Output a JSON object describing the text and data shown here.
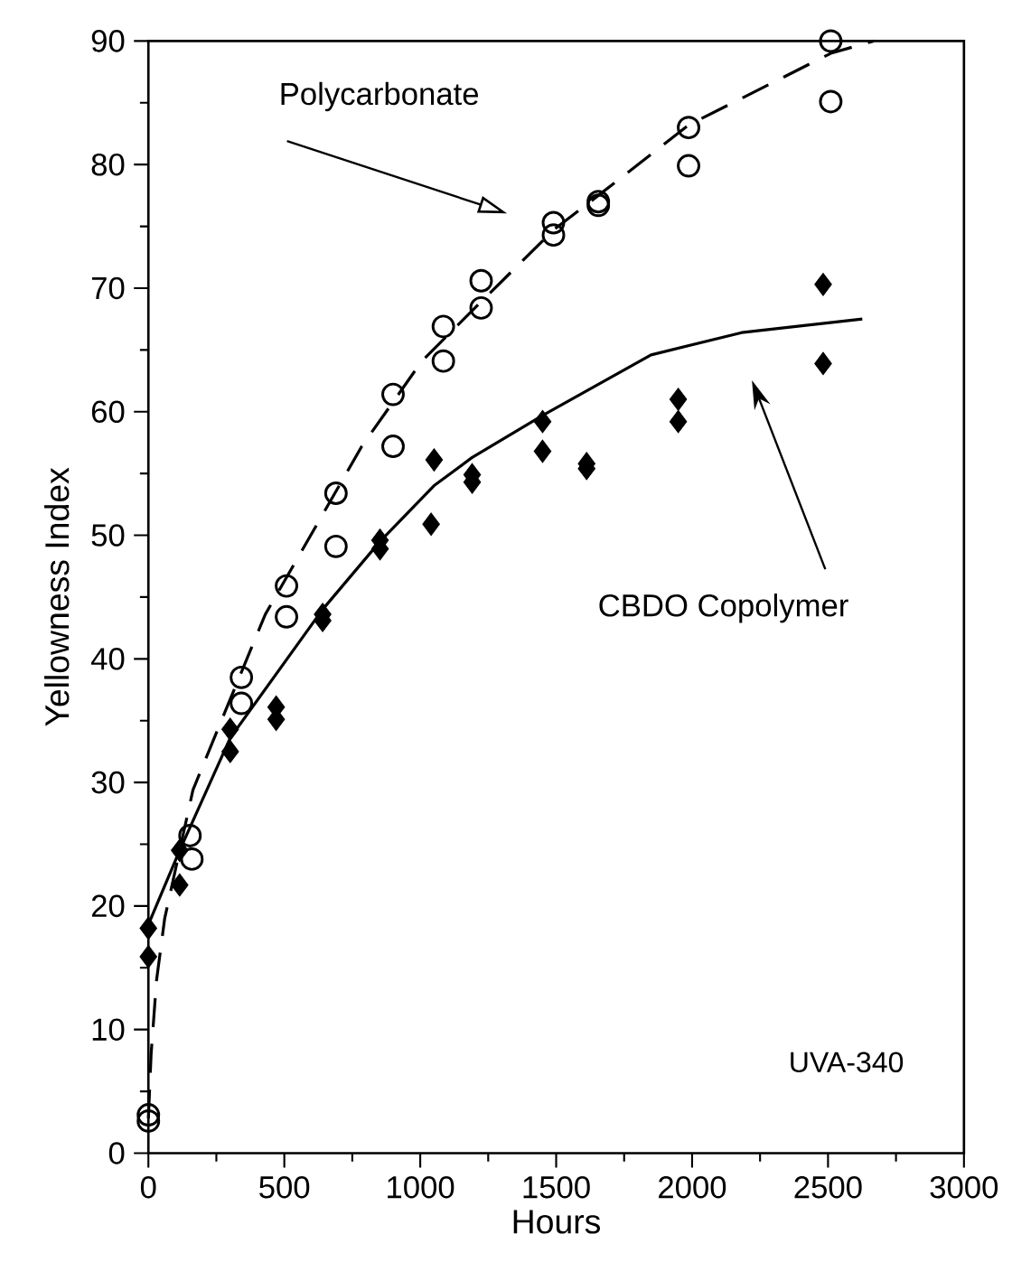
{
  "chart_data": {
    "type": "scatter",
    "xlabel": "Hours",
    "ylabel": "Yellowness Index",
    "xlim": [
      0,
      3000
    ],
    "ylim": [
      0,
      90
    ],
    "xticks": [
      0,
      500,
      1000,
      1500,
      2000,
      2500,
      3000
    ],
    "yticks": [
      0,
      10,
      20,
      30,
      40,
      50,
      60,
      70,
      80,
      90
    ],
    "series": [
      {
        "marker": "circle",
        "color": "#000000",
        "x": [
          0,
          0,
          153,
          160,
          342,
          342,
          508,
          508,
          690,
          690,
          900,
          900,
          1085,
          1085,
          1224,
          1224,
          1490,
          1490,
          1655,
          1655,
          1987,
          1987,
          2510,
          2510
        ],
        "values": [
          3.1,
          2.6,
          25.7,
          23.8,
          38.5,
          36.4,
          45.9,
          43.4,
          53.4,
          49.1,
          61.4,
          57.2,
          66.9,
          64.1,
          70.6,
          68.4,
          75.3,
          74.3,
          77.0,
          76.7,
          83.0,
          79.9,
          90.0,
          85.1
        ]
      },
      {
        "marker": "diamond",
        "color": "#000000",
        "x": [
          0,
          0,
          115,
          115,
          301,
          301,
          470,
          470,
          641,
          641,
          852,
          852,
          1051,
          1040,
          1191,
          1191,
          1450,
          1450,
          1612,
          1612,
          1949,
          1949,
          2482,
          2482
        ],
        "values": [
          18.2,
          15.9,
          24.5,
          21.7,
          34.3,
          32.5,
          36.1,
          35.1,
          43.6,
          43.1,
          49.6,
          48.9,
          56.1,
          50.9,
          54.9,
          54.3,
          59.2,
          56.8,
          55.8,
          55.4,
          61.0,
          59.2,
          70.3,
          63.9
        ]
      },
      {
        "type": "line",
        "line_style": "dashed",
        "marker": "none",
        "color": "#000000",
        "x": [
          0,
          10,
          30,
          60,
          164,
          319,
          430,
          785,
          1006,
          1224,
          1490,
          1655,
          1987,
          2510,
          2668
        ],
        "values": [
          2.8,
          8,
          14,
          19,
          29.4,
          37.7,
          43.6,
          57.2,
          64.1,
          68.9,
          74.7,
          77.5,
          83.2,
          89,
          90
        ]
      },
      {
        "type": "line",
        "line_style": "solid",
        "marker": "none",
        "color": "#000000",
        "x": [
          0,
          115,
          301,
          641,
          852,
          1050,
          1191,
          1450,
          1849,
          2182,
          2626
        ],
        "values": [
          18.5,
          24.5,
          33.6,
          44,
          49.5,
          54.0,
          56.3,
          59.7,
          64.6,
          66.4,
          67.5
        ]
      }
    ],
    "annotations": [
      "Polycarbonate",
      "CBDO Copolymer",
      "UVA-340"
    ]
  }
}
